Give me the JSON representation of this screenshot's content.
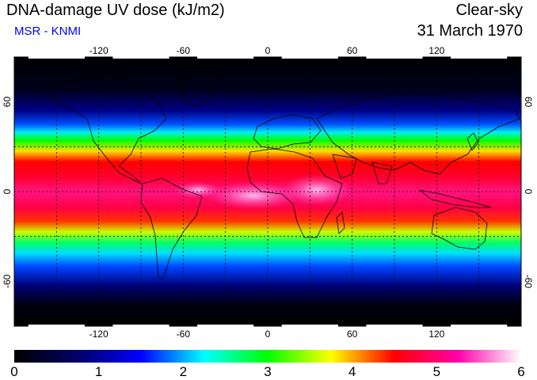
{
  "header": {
    "title": "DNA-damage UV dose (kJ/m2)",
    "subtitle": "MSR - KNMI",
    "mode": "Clear-sky",
    "date": "31 March 1970"
  },
  "colors": {
    "subtitle": "#0000ff",
    "ocean_dark": "#000000",
    "colorbar": [
      "#000000",
      "#000066",
      "#0000ff",
      "#00ffff",
      "#00ff00",
      "#ffff00",
      "#ff0000",
      "#ff00aa",
      "#ffffff"
    ]
  },
  "map": {
    "lon_range": [
      -180,
      180
    ],
    "lat_range": [
      -90,
      90
    ],
    "lon_ticks": [
      -120,
      -60,
      0,
      60,
      120
    ],
    "lat_ticks": [
      60,
      0,
      -60
    ],
    "lon_tick_labels": [
      "-120",
      "-60",
      "0",
      "60",
      "120"
    ],
    "lat_tick_labels": [
      "60",
      "0",
      "-60"
    ],
    "gridlines_lat": [
      -30,
      0,
      30
    ],
    "gridlines_lon": [
      -150,
      -120,
      -90,
      -60,
      -30,
      0,
      30,
      60,
      90,
      120,
      150
    ],
    "grid": "dashed"
  },
  "colorbar": {
    "range": [
      0,
      6
    ],
    "ticks": [
      0,
      1,
      2,
      3,
      4,
      5,
      6
    ],
    "tick_labels": [
      "0",
      "1",
      "2",
      "3",
      "4",
      "5",
      "6"
    ]
  }
}
